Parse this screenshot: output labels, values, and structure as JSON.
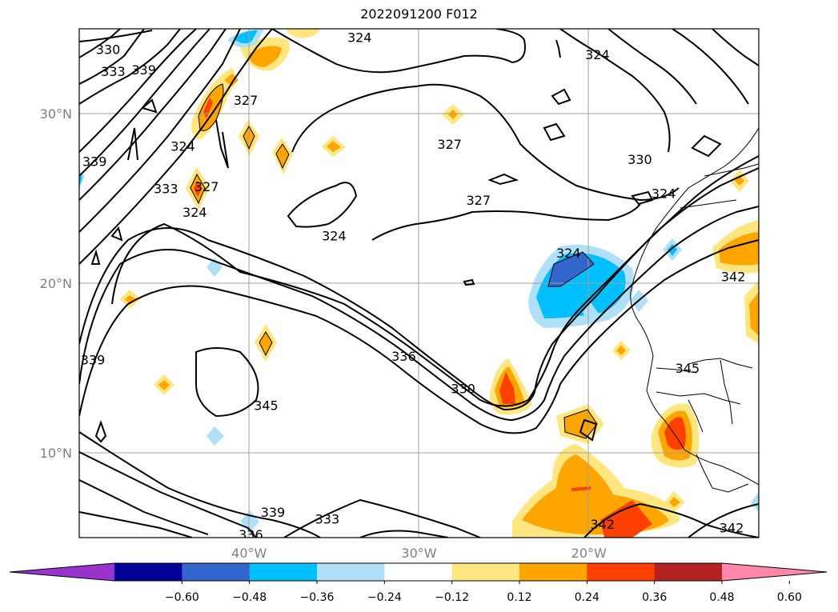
{
  "title": "2022091200 F012",
  "map": {
    "lon_range": [
      -50,
      -10
    ],
    "lat_range": [
      5,
      35
    ],
    "lon_ticks": [
      {
        "value": -40,
        "label": "40°W"
      },
      {
        "value": -30,
        "label": "30°W"
      },
      {
        "value": -20,
        "label": "20°W"
      }
    ],
    "lat_ticks": [
      {
        "value": 10,
        "label": "10°N"
      },
      {
        "value": 20,
        "label": "20°N"
      },
      {
        "value": 30,
        "label": "30°N"
      }
    ],
    "grid": true,
    "contour_color": "#000000",
    "contour_labels": [
      {
        "text": "324",
        "lon": -33.5,
        "lat": 34.5
      },
      {
        "text": "324",
        "lon": -19.5,
        "lat": 33.5
      },
      {
        "text": "327",
        "lon": -40.2,
        "lat": 30.8
      },
      {
        "text": "324",
        "lon": -43.9,
        "lat": 28.1
      },
      {
        "text": "327",
        "lon": -28.2,
        "lat": 28.2
      },
      {
        "text": "330",
        "lon": -17.0,
        "lat": 27.3
      },
      {
        "text": "324",
        "lon": -15.6,
        "lat": 25.3
      },
      {
        "text": "333",
        "lon": -44.9,
        "lat": 25.6
      },
      {
        "text": "327",
        "lon": -42.5,
        "lat": 25.7
      },
      {
        "text": "324",
        "lon": -43.2,
        "lat": 24.2
      },
      {
        "text": "327",
        "lon": -26.5,
        "lat": 24.9
      },
      {
        "text": "324",
        "lon": -35.0,
        "lat": 22.8
      },
      {
        "text": "324",
        "lon": -21.2,
        "lat": 21.8
      },
      {
        "text": "339",
        "lon": -49.1,
        "lat": 27.2
      },
      {
        "text": "342",
        "lon": -11.5,
        "lat": 20.4
      },
      {
        "text": "336",
        "lon": -30.9,
        "lat": 15.7
      },
      {
        "text": "330",
        "lon": -27.4,
        "lat": 13.8
      },
      {
        "text": "345",
        "lon": -39.0,
        "lat": 12.8
      },
      {
        "text": "345",
        "lon": -14.2,
        "lat": 15.0
      },
      {
        "text": "339",
        "lon": -49.2,
        "lat": 15.5
      },
      {
        "text": "339",
        "lon": -38.6,
        "lat": 6.5
      },
      {
        "text": "336",
        "lon": -39.9,
        "lat": 5.2
      },
      {
        "text": "333",
        "lon": -35.4,
        "lat": 6.1
      },
      {
        "text": "342",
        "lon": -19.2,
        "lat": 5.8
      },
      {
        "text": "342",
        "lon": -11.6,
        "lat": 5.6
      },
      {
        "text": "330",
        "lon": -48.3,
        "lat": 33.8
      },
      {
        "text": "333",
        "lon": -48.0,
        "lat": 32.5
      },
      {
        "text": "339",
        "lon": -46.2,
        "lat": 32.6
      }
    ]
  },
  "colorbar": {
    "colors": [
      "#9933cc",
      "#000099",
      "#3366cc",
      "#00bfff",
      "#b0e0f8",
      "#ffffff",
      "#ffe680",
      "#ffa500",
      "#ff4000",
      "#b22222",
      "#ff88aa"
    ],
    "tick_labels": [
      "−0.60",
      "−0.48",
      "−0.36",
      "−0.24",
      "−0.12",
      "0.12",
      "0.24",
      "0.36",
      "0.48",
      "0.60"
    ]
  }
}
